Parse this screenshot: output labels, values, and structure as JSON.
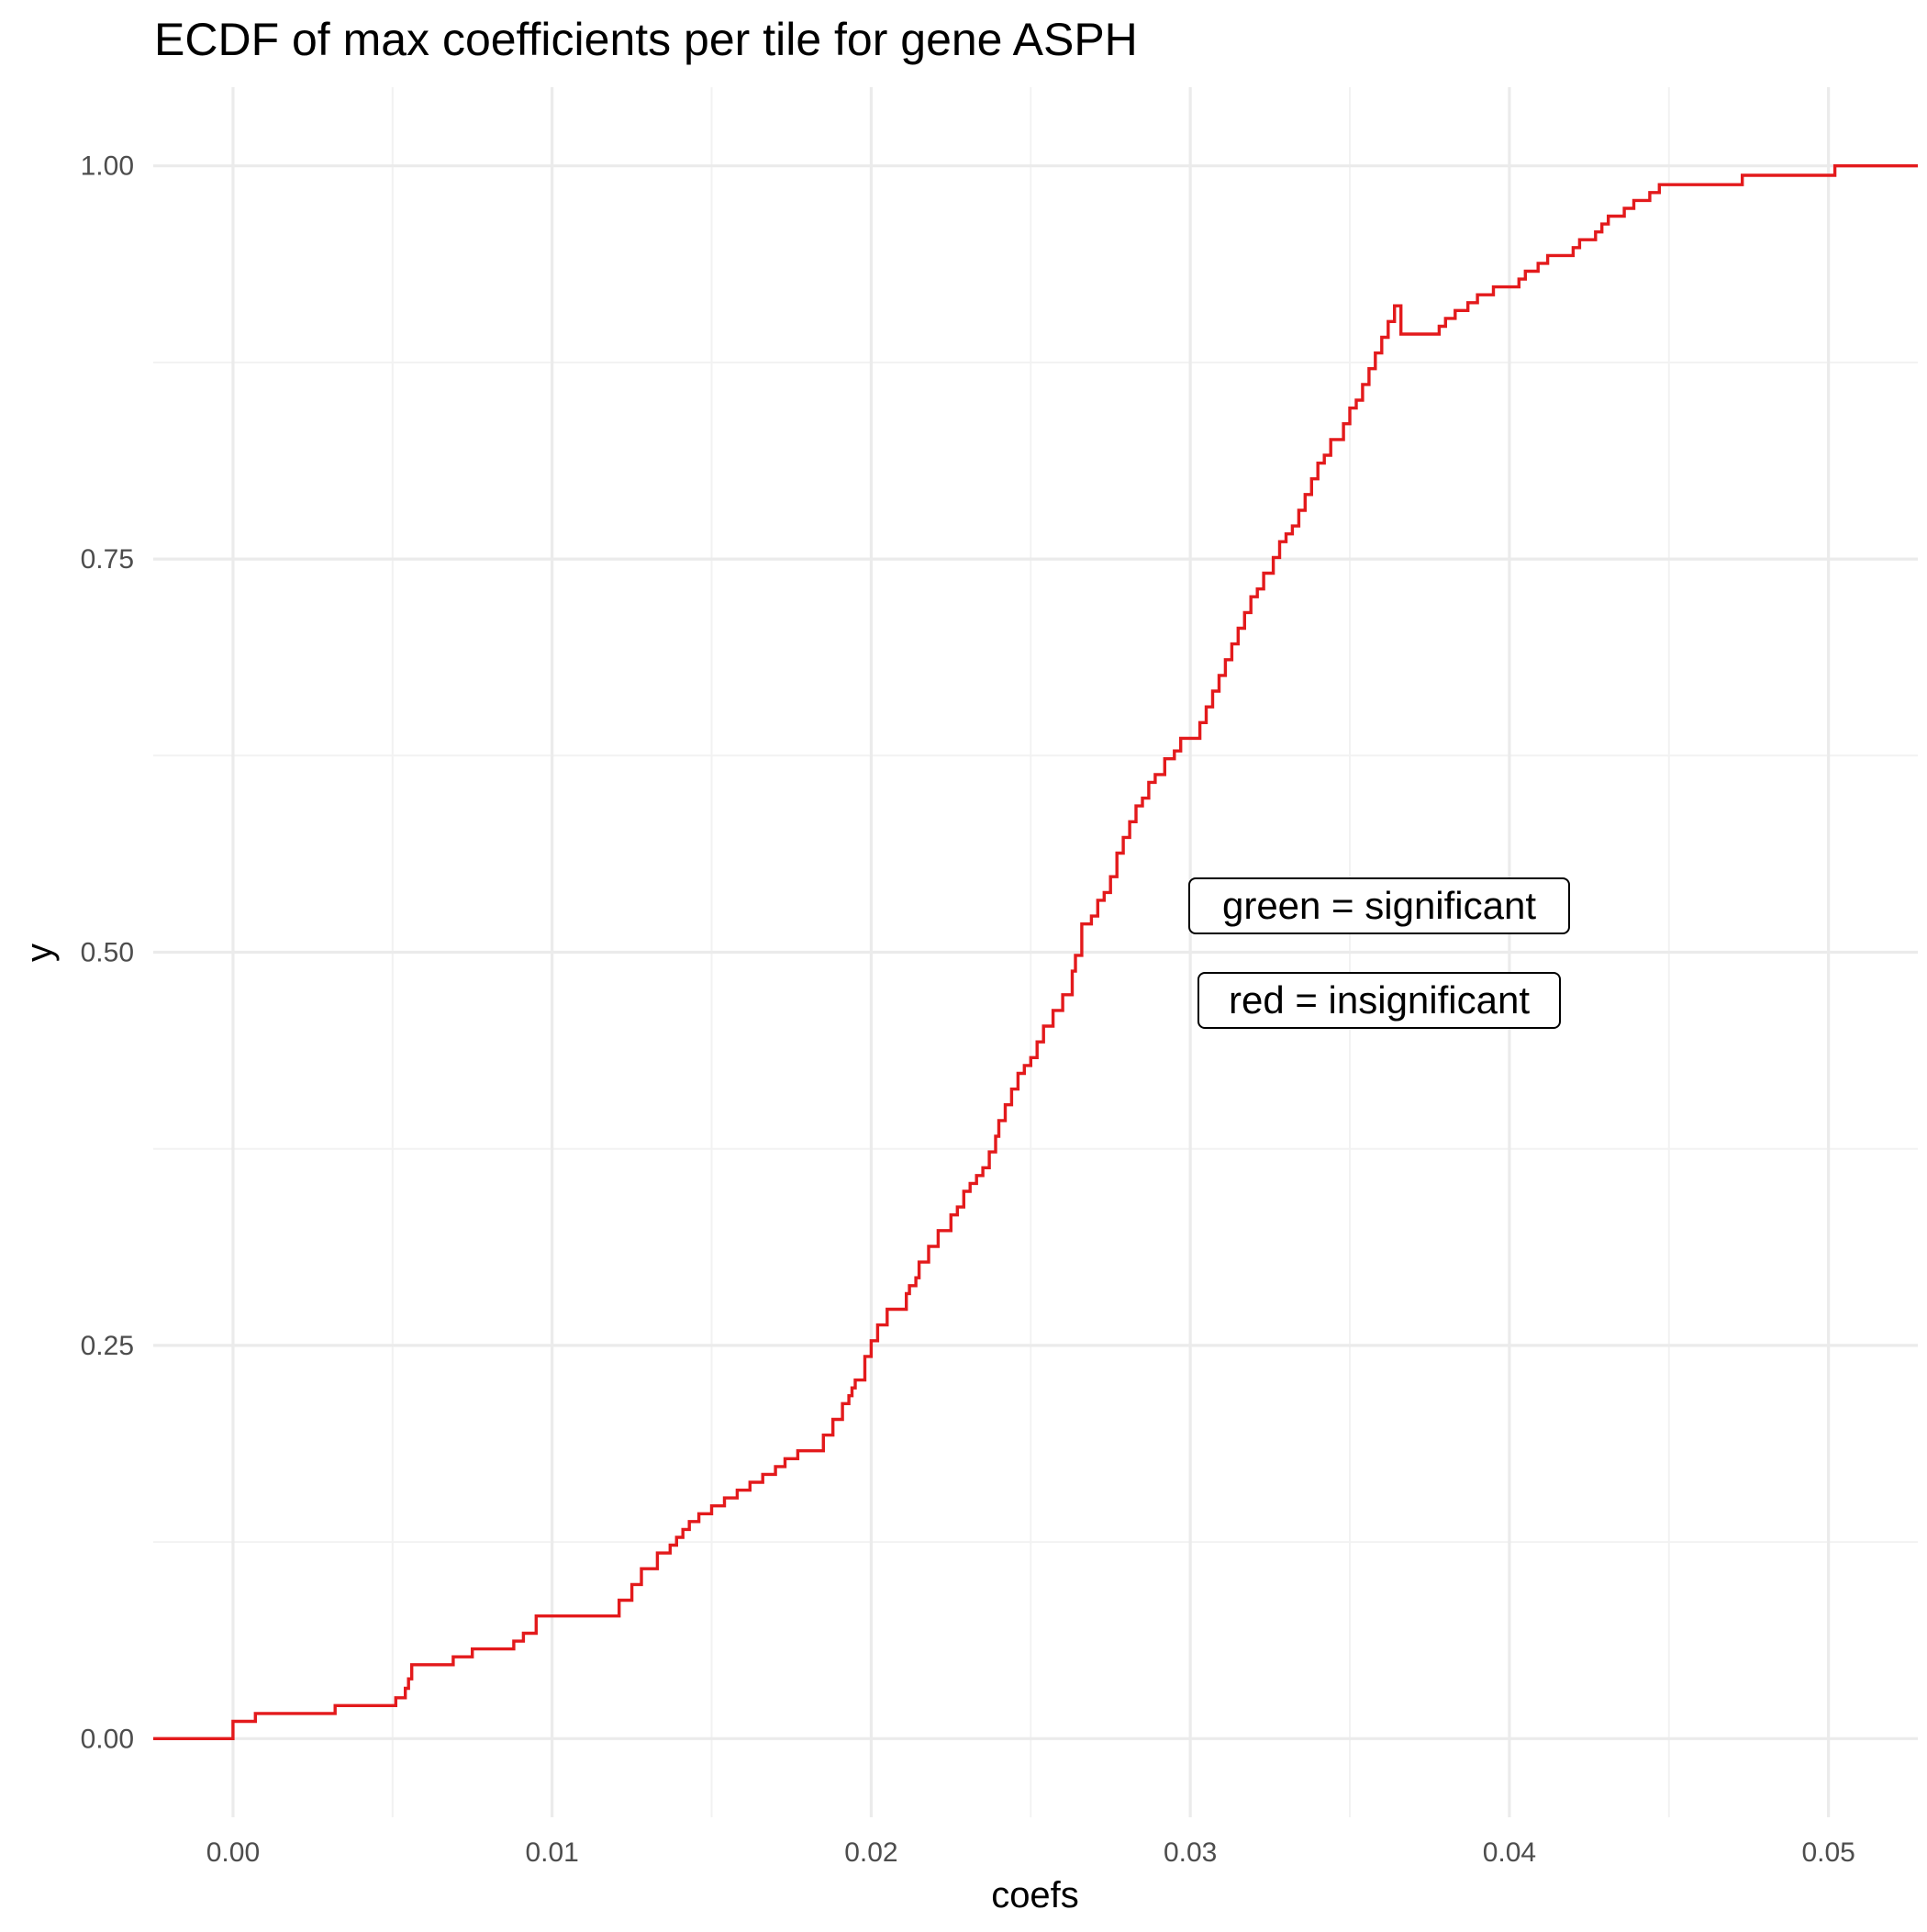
{
  "chart_data": {
    "type": "line",
    "subtype": "ecdf-step",
    "title": "ECDF of max coefficients per tile for gene ASPH",
    "xlabel": "coefs",
    "ylabel": "y",
    "xlim": [
      -0.0025,
      0.0528
    ],
    "ylim": [
      -0.05,
      1.05
    ],
    "x_ticks": [
      0.0,
      0.01,
      0.02,
      0.03,
      0.04,
      0.05
    ],
    "x_tick_labels": [
      "0.00",
      "0.01",
      "0.02",
      "0.03",
      "0.04",
      "0.05"
    ],
    "y_ticks": [
      0.0,
      0.25,
      0.5,
      0.75,
      1.0
    ],
    "y_tick_labels": [
      "0.00",
      "0.25",
      "0.50",
      "0.75",
      "1.00"
    ],
    "grid": true,
    "legend": "none",
    "line_color": "#e31a1c",
    "annotations": [
      {
        "text": "green = significant",
        "x": 0.0058,
        "y": 0.53
      },
      {
        "text": "red = insignificant",
        "x": 0.0058,
        "y": 0.47
      }
    ],
    "series": [
      {
        "x": [
          -0.0025,
          0.0,
          0.0007,
          0.0032,
          0.0051,
          0.0054,
          0.0055,
          0.0056,
          0.0069,
          0.0075,
          0.0088,
          0.0091,
          0.0095,
          0.0121,
          0.0125,
          0.0128,
          0.0133,
          0.0137,
          0.0139,
          0.0141,
          0.0143,
          0.0146,
          0.015,
          0.0154,
          0.0158,
          0.0162,
          0.0166,
          0.017,
          0.0173,
          0.0177,
          0.0185,
          0.0188,
          0.0191,
          0.0193,
          0.0194,
          0.0195,
          0.0198,
          0.02,
          0.0202,
          0.0205,
          0.0211,
          0.0212,
          0.0214,
          0.0215,
          0.0218,
          0.0221,
          0.0225,
          0.0227,
          0.0229,
          0.0231,
          0.0233,
          0.0235,
          0.0237,
          0.0239,
          0.024,
          0.0242,
          0.0244,
          0.0246,
          0.0248,
          0.025,
          0.0252,
          0.0254,
          0.0257,
          0.026,
          0.0263,
          0.0264,
          0.0266,
          0.0269,
          0.0271,
          0.0273,
          0.0275,
          0.0277,
          0.0279,
          0.0281,
          0.0283,
          0.0285,
          0.0287,
          0.0289,
          0.0292,
          0.0295,
          0.0297,
          0.0303,
          0.0305,
          0.0307,
          0.0309,
          0.0311,
          0.0313,
          0.0315,
          0.0317,
          0.0319,
          0.0321,
          0.0323,
          0.0326,
          0.0328,
          0.033,
          0.0332,
          0.0334,
          0.0336,
          0.0338,
          0.034,
          0.0342,
          0.0344,
          0.0348,
          0.035,
          0.0352,
          0.0354,
          0.0356,
          0.0358,
          0.036,
          0.0362,
          0.0364,
          0.0366,
          0.0378,
          0.038,
          0.0383,
          0.0387,
          0.039,
          0.0395,
          0.0403,
          0.0405,
          0.0409,
          0.0412,
          0.042,
          0.0422,
          0.0427,
          0.0429,
          0.0431,
          0.0436,
          0.0439,
          0.0444,
          0.0447,
          0.0473,
          0.0502,
          0.0528
        ],
        "y": [
          0.0,
          0.011,
          0.016,
          0.021,
          0.026,
          0.032,
          0.038,
          0.047,
          0.052,
          0.057,
          0.062,
          0.067,
          0.078,
          0.088,
          0.098,
          0.108,
          0.118,
          0.123,
          0.128,
          0.133,
          0.138,
          0.143,
          0.148,
          0.153,
          0.158,
          0.163,
          0.168,
          0.173,
          0.178,
          0.183,
          0.193,
          0.203,
          0.213,
          0.218,
          0.223,
          0.228,
          0.243,
          0.253,
          0.263,
          0.273,
          0.283,
          0.288,
          0.293,
          0.303,
          0.313,
          0.323,
          0.333,
          0.338,
          0.348,
          0.353,
          0.358,
          0.363,
          0.373,
          0.383,
          0.393,
          0.403,
          0.413,
          0.423,
          0.428,
          0.433,
          0.443,
          0.453,
          0.463,
          0.473,
          0.488,
          0.498,
          0.518,
          0.523,
          0.533,
          0.538,
          0.548,
          0.563,
          0.573,
          0.583,
          0.593,
          0.598,
          0.608,
          0.613,
          0.623,
          0.628,
          0.636,
          0.646,
          0.656,
          0.666,
          0.676,
          0.686,
          0.696,
          0.706,
          0.716,
          0.726,
          0.731,
          0.741,
          0.751,
          0.761,
          0.766,
          0.771,
          0.781,
          0.791,
          0.801,
          0.811,
          0.816,
          0.826,
          0.836,
          0.846,
          0.851,
          0.861,
          0.871,
          0.881,
          0.891,
          0.901,
          0.911,
          0.893,
          0.898,
          0.903,
          0.908,
          0.913,
          0.918,
          0.923,
          0.928,
          0.933,
          0.938,
          0.943,
          0.948,
          0.953,
          0.958,
          0.963,
          0.968,
          0.973,
          0.978,
          0.983,
          0.988,
          0.994,
          1.0,
          1.0
        ]
      }
    ]
  }
}
